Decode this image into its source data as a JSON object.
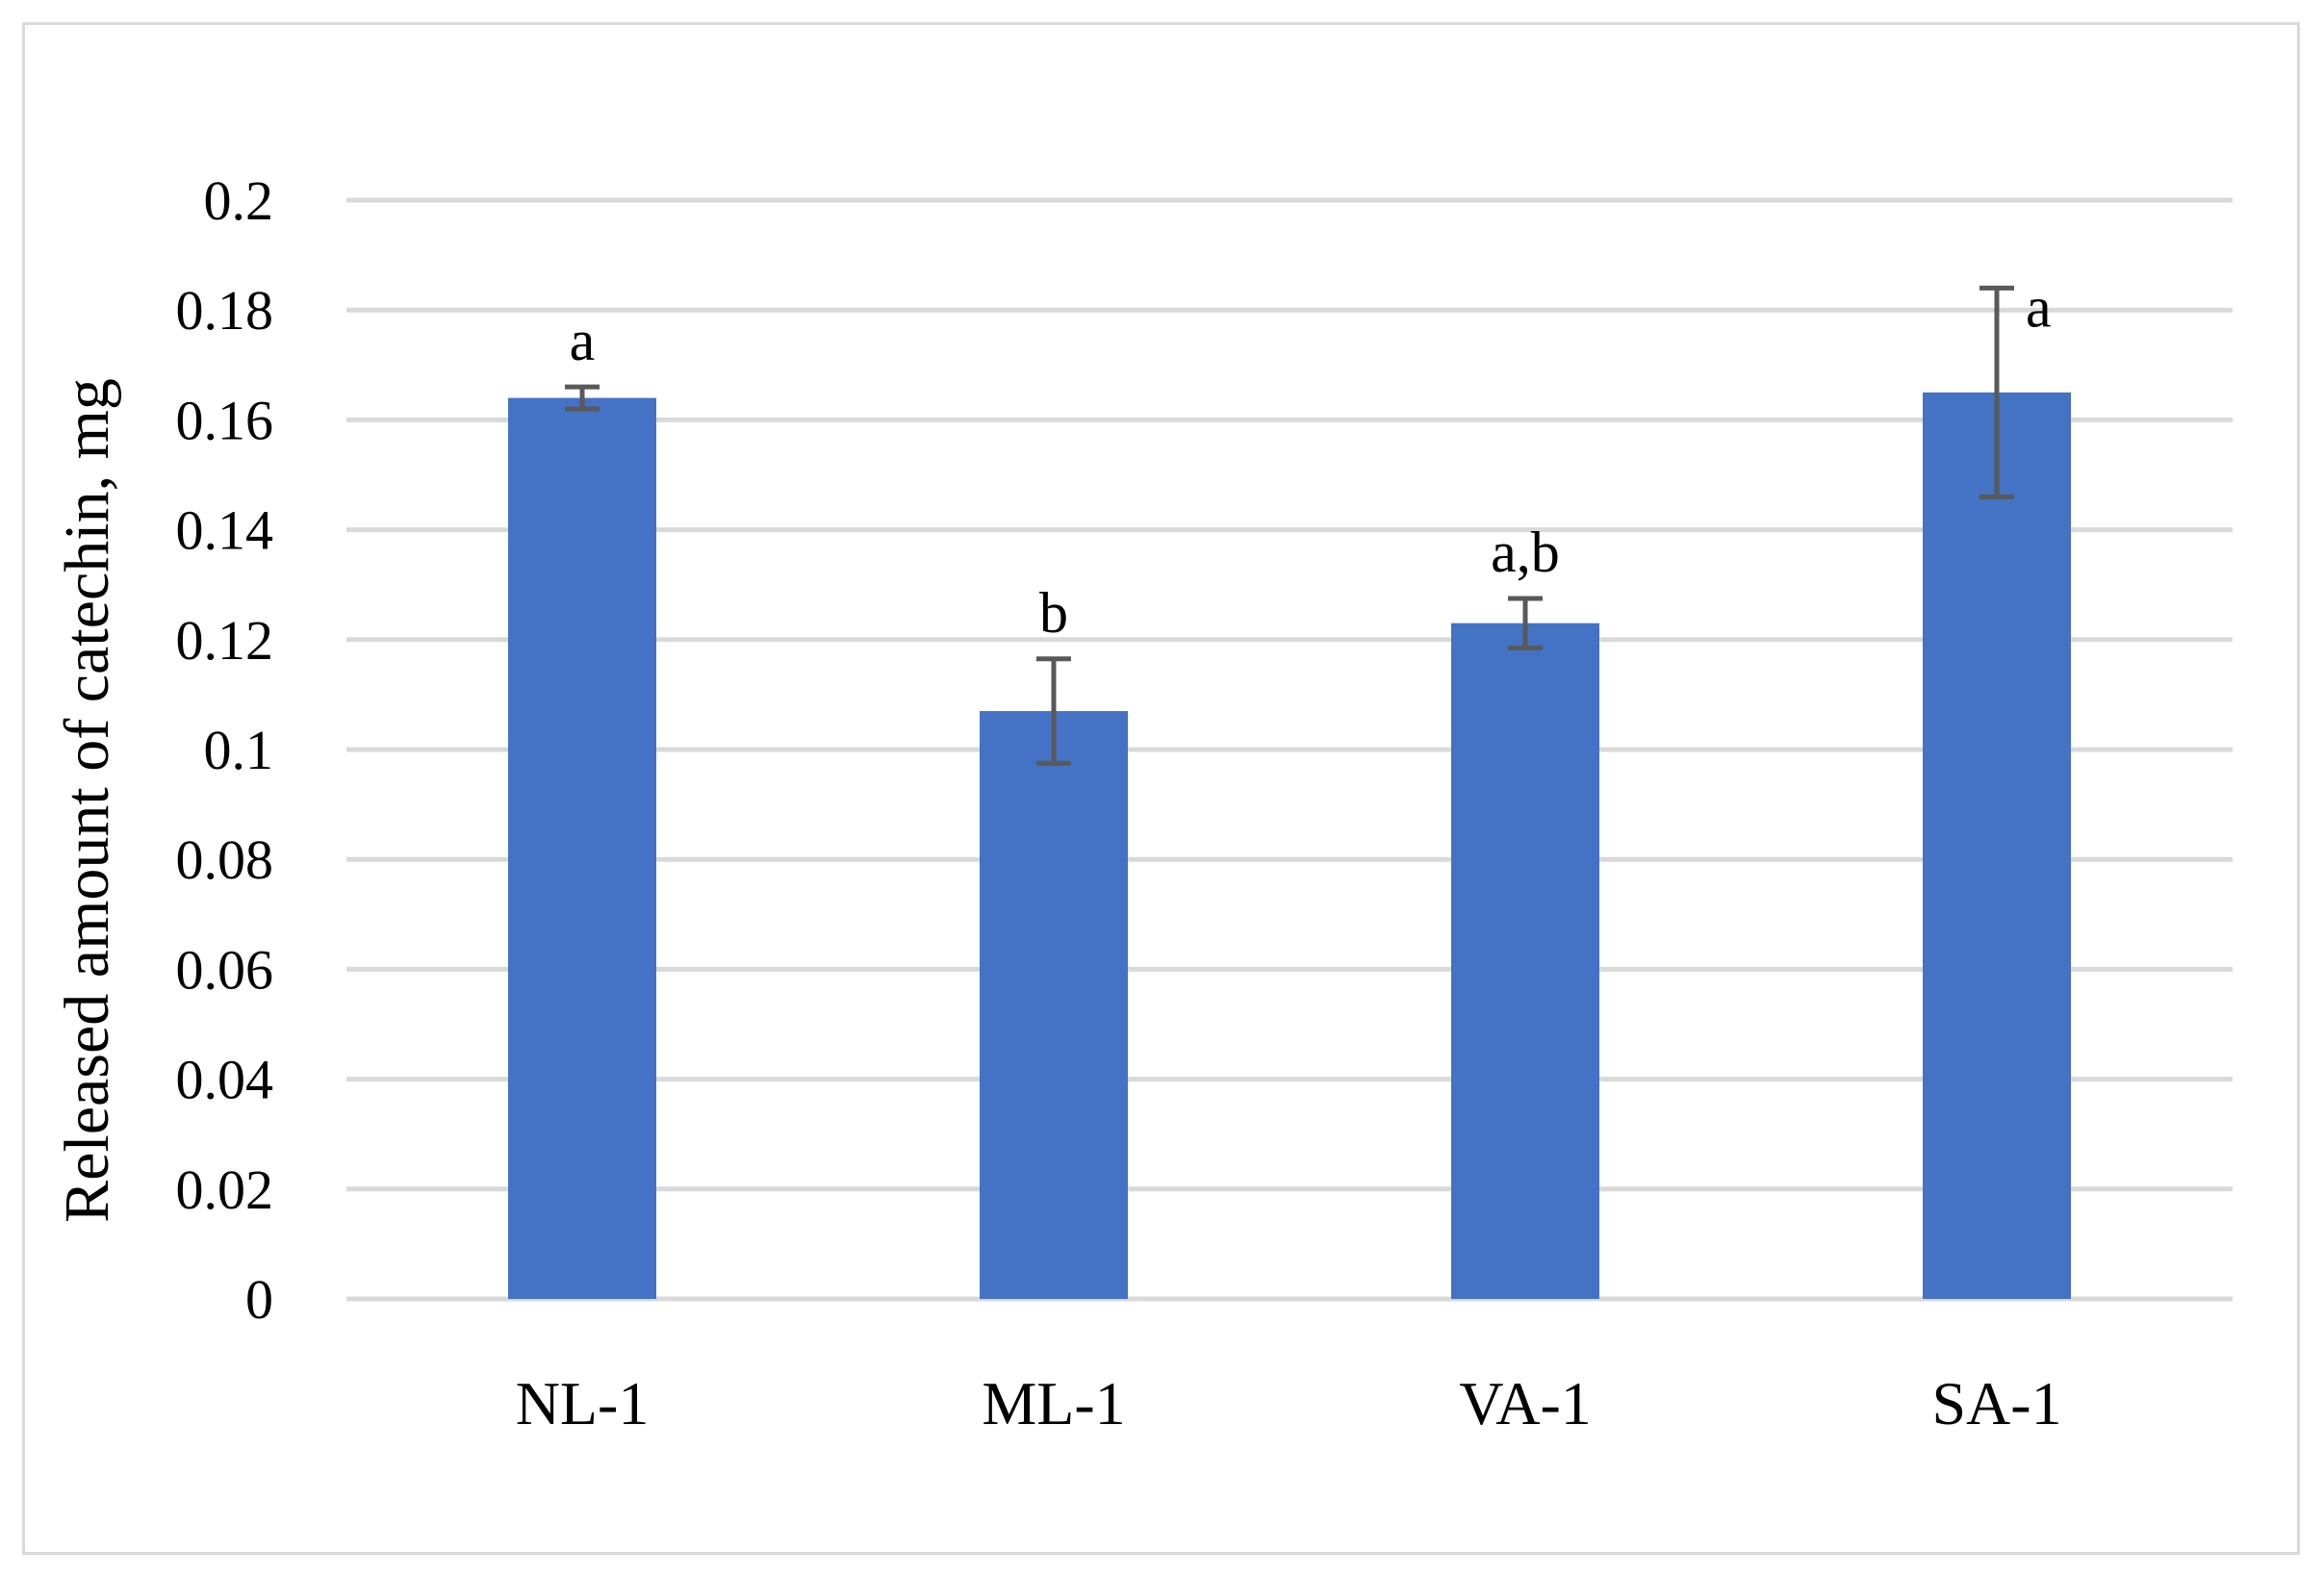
{
  "chart_data": {
    "type": "bar",
    "title": "",
    "xlabel": "",
    "ylabel": "Released amount of catechin, mg",
    "ylim": [
      0,
      0.2
    ],
    "yticks": [
      "0",
      "0.02",
      "0.04",
      "0.06",
      "0.08",
      "0.1",
      "0.12",
      "0.14",
      "0.16",
      "0.18",
      "0.2"
    ],
    "grid": true,
    "legend": "none",
    "bar_color": "#4472c4",
    "error_color": "#595959",
    "categories": [
      "NL-1",
      "ML-1",
      "VA-1",
      "SA-1"
    ],
    "values": [
      0.164,
      0.107,
      0.123,
      0.165
    ],
    "errors": [
      0.002,
      0.0095,
      0.0045,
      0.019
    ],
    "significance": [
      "a",
      "b",
      "a,b",
      "a"
    ]
  }
}
